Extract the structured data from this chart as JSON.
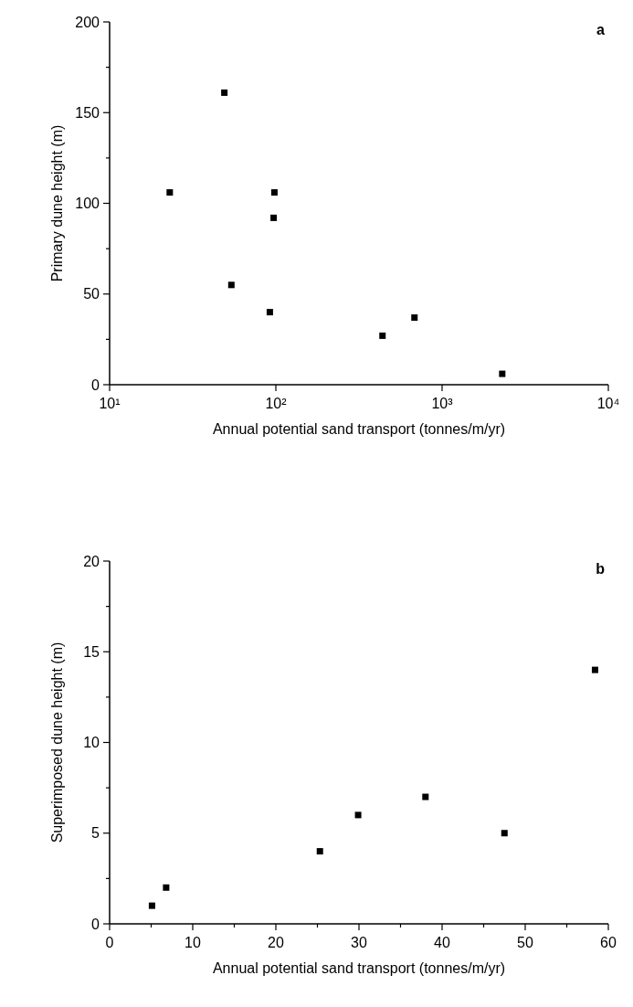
{
  "chart_data": [
    {
      "type": "scatter",
      "xlabel": "Annual potential sand transport (tonnes/m/yr)",
      "ylabel": "Primary dune height (m)",
      "annotations": [
        "a"
      ],
      "log": "x",
      "marker": "square",
      "grid": false,
      "xlim": [
        10,
        10000
      ],
      "ylim": [
        0,
        200
      ],
      "xticks": [
        {
          "value": 10,
          "label": "10¹"
        },
        {
          "value": 100,
          "label": "10²"
        },
        {
          "value": 1000,
          "label": "10³"
        },
        {
          "value": 10000,
          "label": "10⁴"
        }
      ],
      "yticks": [
        0,
        {
          "value": 25,
          "label": null
        },
        50,
        {
          "value": 75,
          "label": null
        },
        100,
        {
          "value": 125,
          "label": null
        },
        150,
        {
          "value": 175,
          "label": null
        },
        200
      ],
      "series": [
        {
          "color": "#000000",
          "x": [
            49,
            23,
            98,
            97,
            54,
            92,
            438,
            682,
            2300
          ],
          "values": [
            161,
            106,
            106,
            92,
            55,
            40,
            27,
            37,
            6
          ]
        }
      ]
    },
    {
      "type": "scatter",
      "xlabel": "Annual potential sand transport (tonnes/m/yr)",
      "ylabel": "Superimposed dune height (m)",
      "annotations": [
        "b"
      ],
      "marker": "square",
      "grid": false,
      "xlim": [
        0,
        60
      ],
      "ylim": [
        0,
        20
      ],
      "xticks": [
        0,
        {
          "value": 5,
          "label": null
        },
        10,
        {
          "value": 15,
          "label": null
        },
        20,
        {
          "value": 25,
          "label": null
        },
        30,
        {
          "value": 35,
          "label": null
        },
        40,
        {
          "value": 45,
          "label": null
        },
        50,
        {
          "value": 55,
          "label": null
        },
        60
      ],
      "yticks": [
        0,
        {
          "value": 2.5,
          "label": null
        },
        5,
        {
          "value": 7.5,
          "label": null
        },
        10,
        {
          "value": 12.5,
          "label": null
        },
        15,
        {
          "value": 17.5,
          "label": null
        },
        20
      ],
      "series": [
        {
          "color": "#000000",
          "x": [
            5.1,
            6.8,
            25.3,
            29.9,
            38,
            47.5,
            58.4
          ],
          "values": [
            1,
            2,
            4,
            6,
            7,
            5,
            14
          ]
        }
      ]
    }
  ]
}
